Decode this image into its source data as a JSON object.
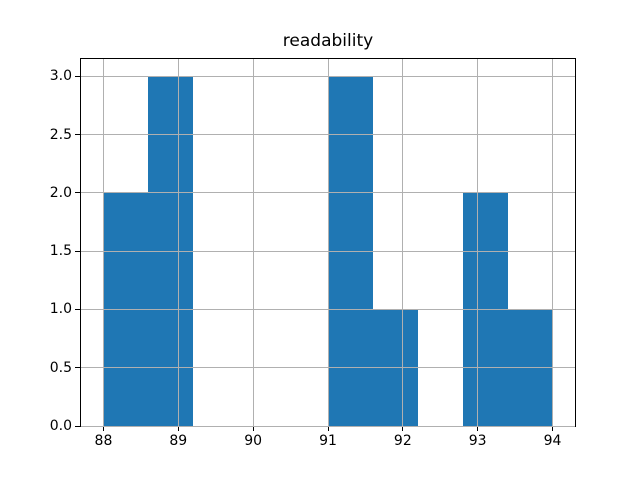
{
  "title": "readability",
  "chart_data": {
    "type": "bar",
    "subtype": "histogram",
    "title": "readability",
    "xlabel": "",
    "ylabel": "",
    "bin_edges": [
      88.0,
      88.6,
      89.2,
      89.8,
      90.4,
      91.0,
      91.6,
      92.2,
      92.8,
      93.4,
      94.0
    ],
    "counts": [
      2,
      3,
      0,
      0,
      0,
      3,
      1,
      0,
      2,
      1
    ],
    "xlim": [
      87.7,
      94.3
    ],
    "ylim": [
      0,
      3.15
    ],
    "xtick_values": [
      88,
      89,
      90,
      91,
      92,
      93,
      94
    ],
    "xtick_labels": [
      "88",
      "89",
      "90",
      "91",
      "92",
      "93",
      "94"
    ],
    "ytick_values": [
      0.0,
      0.5,
      1.0,
      1.5,
      2.0,
      2.5,
      3.0
    ],
    "ytick_labels": [
      "0.0",
      "0.5",
      "1.0",
      "1.5",
      "2.0",
      "2.5",
      "3.0"
    ],
    "bar_color": "#1f77b4",
    "grid_color": "#b0b0b0",
    "spine_color": "#000000",
    "grid": true,
    "grid_position": "above-bars",
    "legend": false
  }
}
